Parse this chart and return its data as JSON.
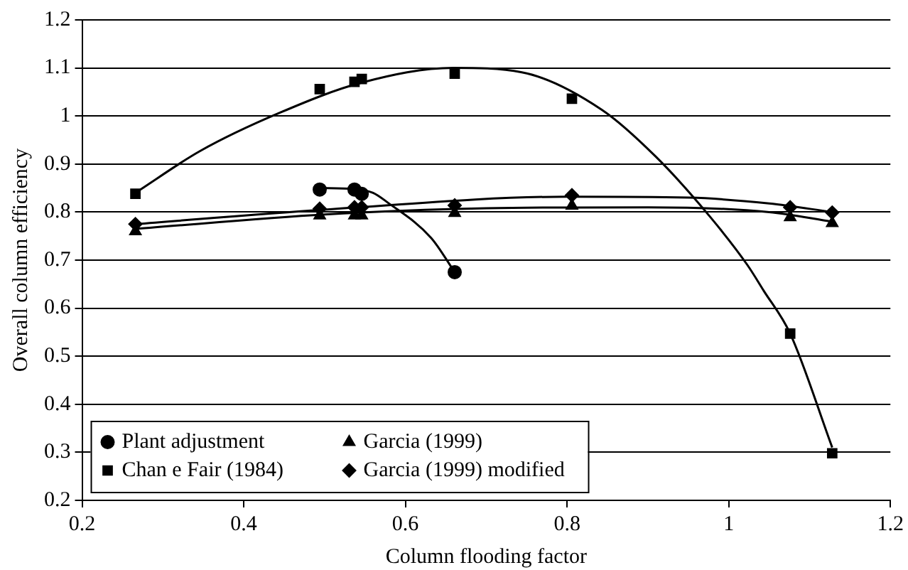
{
  "chart_data": {
    "type": "scatter",
    "xlabel": "Column flooding factor",
    "ylabel": "Overall column efficiency",
    "xlim": [
      0.2,
      1.2
    ],
    "xticks": [
      0.2,
      0.4,
      0.6,
      0.8,
      1,
      1.2
    ],
    "ylim": [
      0.2,
      1.2
    ],
    "yticks": [
      0.2,
      0.3,
      0.4,
      0.5,
      0.6,
      0.7,
      0.8,
      0.9,
      1,
      1.1,
      1.2
    ],
    "grid": "y",
    "legend": "bottom left",
    "series": [
      {
        "name": "Plant adjustment",
        "type": "scatter",
        "marker": "circle",
        "color": "#000000",
        "x": [
          0.494,
          0.537,
          0.546,
          0.661
        ],
        "values": [
          0.847,
          0.847,
          0.838,
          0.675
        ]
      },
      {
        "name": "Chan e Fair (1984)",
        "type": "scatter",
        "marker": "square",
        "color": "#000000",
        "x": [
          0.266,
          0.494,
          0.537,
          0.546,
          0.661,
          0.806,
          1.076,
          1.128
        ],
        "values": [
          0.838,
          1.056,
          1.071,
          1.077,
          1.088,
          1.036,
          0.547,
          0.298
        ]
      },
      {
        "name": "Garcia (1999)",
        "type": "scatter",
        "marker": "triangle",
        "color": "#000000",
        "x": [
          0.266,
          0.494,
          0.537,
          0.546,
          0.661,
          0.806,
          1.076,
          1.128
        ],
        "values": [
          0.76,
          0.793,
          0.793,
          0.793,
          0.798,
          0.813,
          0.789,
          0.777
        ]
      },
      {
        "name": "Garcia (1999) modified",
        "type": "scatter",
        "marker": "diamond",
        "color": "#000000",
        "x": [
          0.266,
          0.494,
          0.537,
          0.546,
          0.661,
          0.806,
          1.076,
          1.128
        ],
        "values": [
          0.775,
          0.807,
          0.81,
          0.81,
          0.814,
          0.835,
          0.81,
          0.799
        ]
      },
      {
        "type": "line",
        "marker": "none",
        "color": "#000000",
        "x": [
          0.494,
          0.537,
          0.56,
          0.578,
          0.632,
          0.661
        ],
        "values": [
          0.85,
          0.848,
          0.84,
          0.82,
          0.746,
          0.675
        ]
      },
      {
        "type": "line",
        "marker": "none",
        "color": "#000000",
        "x": [
          0.266,
          0.346,
          0.445,
          0.545,
          0.659,
          0.744,
          0.843,
          0.91,
          0.977,
          1.023,
          1.043,
          1.076,
          1.128
        ],
        "values": [
          0.84,
          0.927,
          1.007,
          1.069,
          1.1,
          1.091,
          1.013,
          0.915,
          0.79,
          0.69,
          0.637,
          0.547,
          0.31
        ]
      },
      {
        "type": "line",
        "marker": "none",
        "color": "#000000",
        "x": [
          0.266,
          0.5,
          0.7,
          0.9,
          1.05,
          1.128
        ],
        "values": [
          0.765,
          0.795,
          0.808,
          0.81,
          0.8,
          0.78
        ]
      },
      {
        "type": "line",
        "marker": "none",
        "color": "#000000",
        "x": [
          0.266,
          0.5,
          0.8,
          0.95,
          1.05,
          1.128
        ],
        "values": [
          0.775,
          0.805,
          0.832,
          0.83,
          0.818,
          0.8
        ]
      }
    ]
  }
}
